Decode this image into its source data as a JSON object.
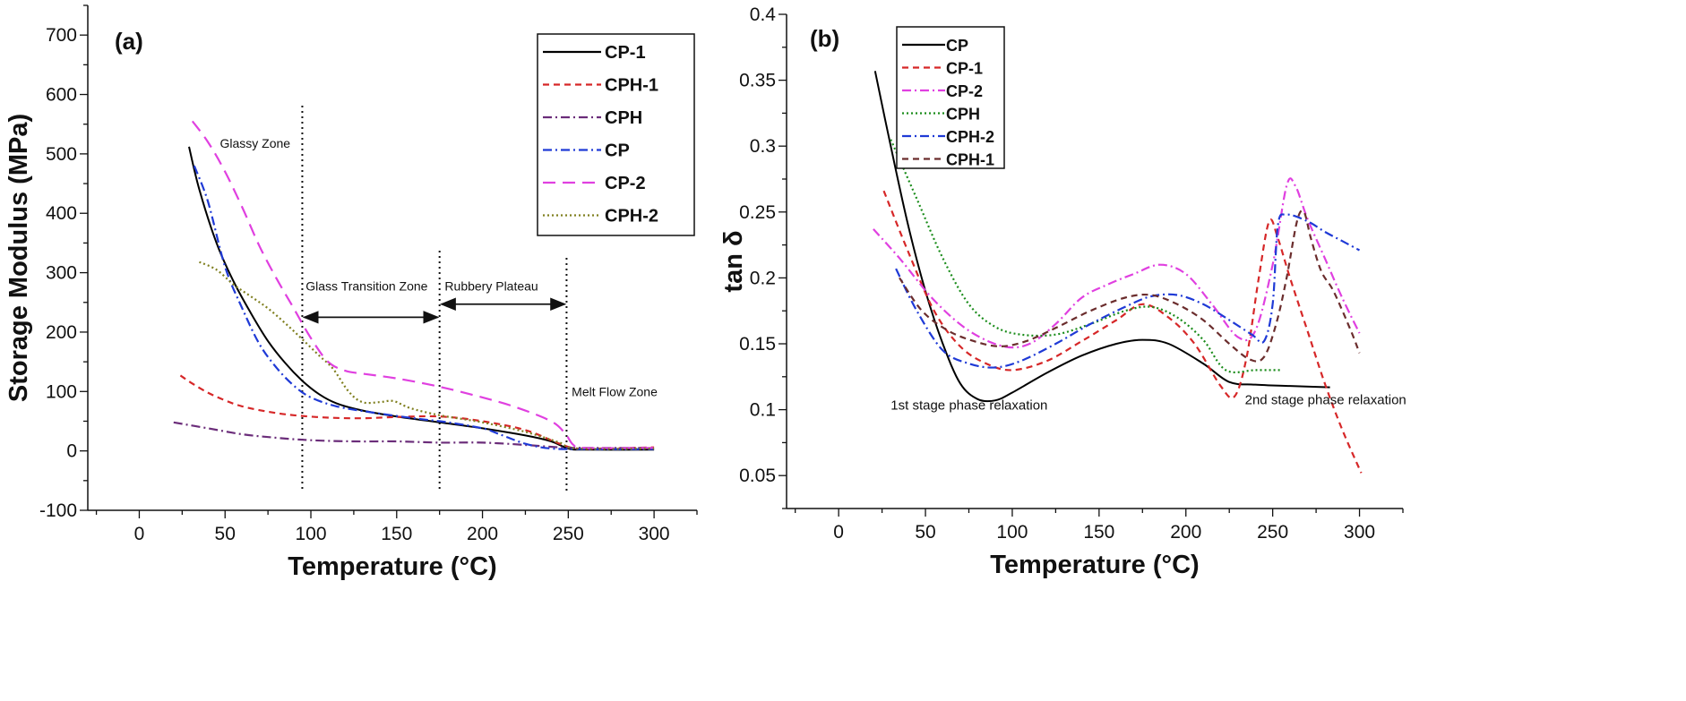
{
  "chart_data": [
    {
      "panel_label": "(a)",
      "type": "line",
      "xlabel": "Temperature (°C)",
      "ylabel": "Storage Modulus (MPa)",
      "xlim": [
        -30,
        325
      ],
      "ylim": [
        -100,
        750
      ],
      "xticks": [
        0,
        50,
        100,
        150,
        200,
        250,
        300
      ],
      "yticks": [
        -100,
        0,
        100,
        200,
        300,
        400,
        500,
        600,
        700
      ],
      "legend_position": "top-right",
      "series": [
        {
          "name": "CP-1",
          "color": "#000000",
          "style": "solid",
          "points": [
            [
              29,
              512
            ],
            [
              35,
              440
            ],
            [
              45,
              350
            ],
            [
              55,
              285
            ],
            [
              65,
              232
            ],
            [
              75,
              185
            ],
            [
              85,
              148
            ],
            [
              95,
              118
            ],
            [
              105,
              95
            ],
            [
              115,
              80
            ],
            [
              130,
              68
            ],
            [
              150,
              58
            ],
            [
              175,
              48
            ],
            [
              200,
              38
            ],
            [
              225,
              26
            ],
            [
              240,
              16
            ],
            [
              250,
              4
            ],
            [
              260,
              2
            ],
            [
              300,
              2
            ]
          ]
        },
        {
          "name": "CPH-1",
          "color": "#d62728",
          "style": "dashed",
          "points": [
            [
              24,
              127
            ],
            [
              30,
              115
            ],
            [
              40,
              98
            ],
            [
              50,
              85
            ],
            [
              60,
              75
            ],
            [
              75,
              66
            ],
            [
              90,
              60
            ],
            [
              110,
              56
            ],
            [
              130,
              55
            ],
            [
              150,
              57
            ],
            [
              175,
              58
            ],
            [
              200,
              50
            ],
            [
              225,
              35
            ],
            [
              245,
              12
            ],
            [
              255,
              4
            ],
            [
              270,
              4
            ],
            [
              300,
              6
            ]
          ]
        },
        {
          "name": "CPH",
          "color": "#6b2d7a",
          "style": "dashdot",
          "points": [
            [
              20,
              48
            ],
            [
              40,
              38
            ],
            [
              60,
              28
            ],
            [
              80,
              22
            ],
            [
              100,
              18
            ],
            [
              125,
              16
            ],
            [
              150,
              16
            ],
            [
              175,
              14
            ],
            [
              200,
              14
            ],
            [
              225,
              10
            ],
            [
              245,
              6
            ],
            [
              260,
              5
            ],
            [
              300,
              5
            ]
          ]
        },
        {
          "name": "CP",
          "color": "#1f3ad6",
          "style": "dashdot",
          "points": [
            [
              32,
              480
            ],
            [
              40,
              420
            ],
            [
              50,
              310
            ],
            [
              60,
              240
            ],
            [
              70,
              180
            ],
            [
              80,
              140
            ],
            [
              90,
              110
            ],
            [
              100,
              90
            ],
            [
              115,
              75
            ],
            [
              135,
              65
            ],
            [
              160,
              55
            ],
            [
              180,
              48
            ],
            [
              200,
              38
            ],
            [
              210,
              28
            ],
            [
              225,
              12
            ],
            [
              240,
              4
            ],
            [
              260,
              3
            ],
            [
              300,
              3
            ]
          ]
        },
        {
          "name": "CP-2",
          "color": "#e040e0",
          "style": "longdash",
          "points": [
            [
              31,
              555
            ],
            [
              40,
              520
            ],
            [
              50,
              470
            ],
            [
              60,
              410
            ],
            [
              70,
              345
            ],
            [
              80,
              290
            ],
            [
              90,
              240
            ],
            [
              100,
              190
            ],
            [
              110,
              150
            ],
            [
              120,
              135
            ],
            [
              130,
              130
            ],
            [
              150,
              122
            ],
            [
              175,
              108
            ],
            [
              200,
              90
            ],
            [
              220,
              73
            ],
            [
              240,
              50
            ],
            [
              248,
              30
            ],
            [
              253,
              10
            ],
            [
              260,
              5
            ],
            [
              300,
              5
            ]
          ]
        },
        {
          "name": "CPH-2",
          "color": "#7f7f1f",
          "style": "dotted",
          "points": [
            [
              35,
              318
            ],
            [
              45,
              305
            ],
            [
              55,
              280
            ],
            [
              65,
              260
            ],
            [
              75,
              240
            ],
            [
              85,
              215
            ],
            [
              95,
              188
            ],
            [
              105,
              160
            ],
            [
              113,
              138
            ],
            [
              122,
              100
            ],
            [
              130,
              82
            ],
            [
              140,
              82
            ],
            [
              148,
              84
            ],
            [
              158,
              72
            ],
            [
              175,
              60
            ],
            [
              200,
              48
            ],
            [
              225,
              32
            ],
            [
              245,
              14
            ],
            [
              255,
              4
            ],
            [
              300,
              4
            ]
          ]
        }
      ],
      "annotations": [
        {
          "text": "Glassy Zone",
          "x": 47,
          "y": 510
        },
        {
          "text": "Glass Transition Zone",
          "x": 97,
          "y": 270
        },
        {
          "text": "Rubbery Plateau",
          "x": 178,
          "y": 270
        },
        {
          "text": "Melt Flow Zone",
          "x": 252,
          "y": 92
        }
      ],
      "vlines": [
        95,
        175,
        249
      ],
      "arrows": [
        [
          95,
          175,
          225
        ],
        [
          175,
          249,
          247
        ]
      ]
    },
    {
      "panel_label": "(b)",
      "type": "line",
      "xlabel": "Temperature (°C)",
      "ylabel": "tan δ",
      "xlim": [
        -30,
        325
      ],
      "ylim": [
        0.025,
        0.4
      ],
      "xticks": [
        0,
        50,
        100,
        150,
        200,
        250,
        300
      ],
      "yticks": [
        0.05,
        0.1,
        0.15,
        0.2,
        0.25,
        0.3,
        0.35,
        0.4
      ],
      "legend_position": "top-left",
      "series": [
        {
          "name": "CP",
          "color": "#000000",
          "style": "solid",
          "points": [
            [
              21,
              0.357
            ],
            [
              30,
              0.3
            ],
            [
              40,
              0.24
            ],
            [
              50,
              0.19
            ],
            [
              60,
              0.15
            ],
            [
              70,
              0.12
            ],
            [
              80,
              0.108
            ],
            [
              90,
              0.107
            ],
            [
              100,
              0.113
            ],
            [
              120,
              0.128
            ],
            [
              140,
              0.141
            ],
            [
              160,
              0.15
            ],
            [
              175,
              0.153
            ],
            [
              190,
              0.15
            ],
            [
              210,
              0.135
            ],
            [
              225,
              0.121
            ],
            [
              240,
              0.119
            ],
            [
              260,
              0.118
            ],
            [
              283,
              0.117
            ]
          ]
        },
        {
          "name": "CP-1",
          "color": "#d62728",
          "style": "dashed",
          "points": [
            [
              26,
              0.266
            ],
            [
              40,
              0.22
            ],
            [
              55,
              0.175
            ],
            [
              70,
              0.148
            ],
            [
              85,
              0.135
            ],
            [
              100,
              0.13
            ],
            [
              120,
              0.137
            ],
            [
              140,
              0.152
            ],
            [
              160,
              0.168
            ],
            [
              175,
              0.18
            ],
            [
              190,
              0.17
            ],
            [
              205,
              0.15
            ],
            [
              220,
              0.118
            ],
            [
              228,
              0.11
            ],
            [
              235,
              0.14
            ],
            [
              242,
              0.2
            ],
            [
              248,
              0.243
            ],
            [
              253,
              0.23
            ],
            [
              260,
              0.2
            ],
            [
              270,
              0.16
            ],
            [
              280,
              0.12
            ],
            [
              290,
              0.085
            ],
            [
              301,
              0.052
            ]
          ]
        },
        {
          "name": "CP-2",
          "color": "#e040e0",
          "style": "dashdot",
          "points": [
            [
              20,
              0.237
            ],
            [
              35,
              0.215
            ],
            [
              55,
              0.183
            ],
            [
              75,
              0.16
            ],
            [
              95,
              0.148
            ],
            [
              110,
              0.15
            ],
            [
              125,
              0.165
            ],
            [
              140,
              0.185
            ],
            [
              155,
              0.195
            ],
            [
              170,
              0.203
            ],
            [
              185,
              0.21
            ],
            [
              200,
              0.203
            ],
            [
              215,
              0.18
            ],
            [
              230,
              0.155
            ],
            [
              240,
              0.16
            ],
            [
              250,
              0.21
            ],
            [
              258,
              0.27
            ],
            [
              263,
              0.27
            ],
            [
              270,
              0.245
            ],
            [
              280,
              0.215
            ],
            [
              290,
              0.185
            ],
            [
              300,
              0.158
            ]
          ]
        },
        {
          "name": "CPH",
          "color": "#1a8c1a",
          "style": "dotted",
          "points": [
            [
              30,
              0.305
            ],
            [
              45,
              0.26
            ],
            [
              60,
              0.215
            ],
            [
              75,
              0.18
            ],
            [
              90,
              0.163
            ],
            [
              105,
              0.157
            ],
            [
              125,
              0.157
            ],
            [
              145,
              0.165
            ],
            [
              165,
              0.175
            ],
            [
              180,
              0.178
            ],
            [
              195,
              0.17
            ],
            [
              210,
              0.153
            ],
            [
              223,
              0.13
            ],
            [
              240,
              0.13
            ],
            [
              255,
              0.13
            ]
          ]
        },
        {
          "name": "CPH-2",
          "color": "#1f3ad6",
          "style": "dashdot",
          "points": [
            [
              33,
              0.207
            ],
            [
              45,
              0.175
            ],
            [
              60,
              0.145
            ],
            [
              75,
              0.135
            ],
            [
              90,
              0.132
            ],
            [
              105,
              0.137
            ],
            [
              125,
              0.15
            ],
            [
              145,
              0.165
            ],
            [
              165,
              0.178
            ],
            [
              180,
              0.186
            ],
            [
              195,
              0.187
            ],
            [
              210,
              0.18
            ],
            [
              225,
              0.168
            ],
            [
              238,
              0.157
            ],
            [
              245,
              0.152
            ],
            [
              250,
              0.18
            ],
            [
              253,
              0.24
            ],
            [
              258,
              0.248
            ],
            [
              270,
              0.243
            ],
            [
              280,
              0.235
            ],
            [
              290,
              0.228
            ],
            [
              300,
              0.221
            ]
          ]
        },
        {
          "name": "CPH-1",
          "color": "#6b2d2d",
          "style": "dashed",
          "points": [
            [
              35,
              0.2
            ],
            [
              48,
              0.175
            ],
            [
              63,
              0.16
            ],
            [
              78,
              0.152
            ],
            [
              93,
              0.148
            ],
            [
              108,
              0.152
            ],
            [
              125,
              0.162
            ],
            [
              145,
              0.175
            ],
            [
              165,
              0.185
            ],
            [
              180,
              0.187
            ],
            [
              195,
              0.18
            ],
            [
              210,
              0.168
            ],
            [
              225,
              0.15
            ],
            [
              237,
              0.138
            ],
            [
              245,
              0.14
            ],
            [
              252,
              0.165
            ],
            [
              258,
              0.2
            ],
            [
              264,
              0.243
            ],
            [
              268,
              0.25
            ],
            [
              272,
              0.23
            ],
            [
              278,
              0.205
            ],
            [
              285,
              0.19
            ],
            [
              295,
              0.16
            ],
            [
              300,
              0.143
            ]
          ]
        }
      ],
      "annotations": [
        {
          "text": "1st stage phase relaxation",
          "x": 30,
          "y": 0.1
        },
        {
          "text": "2nd stage phase relaxation",
          "x": 234,
          "y": 0.104
        }
      ]
    }
  ]
}
